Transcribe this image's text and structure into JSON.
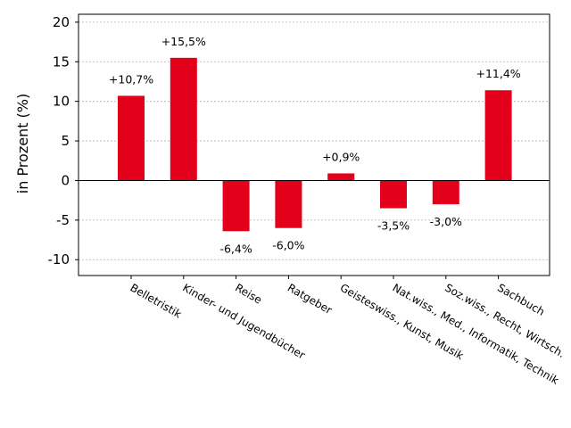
{
  "chart_data": {
    "type": "bar",
    "title": "",
    "xlabel": "",
    "ylabel": "in Prozent (%)",
    "ylim": [
      -12,
      21
    ],
    "yticks": [
      20,
      15,
      10,
      5,
      0,
      -5,
      -10
    ],
    "ytick_labels": [
      "20",
      "15",
      "10",
      "5",
      "0",
      "-5",
      "-10"
    ],
    "grid": true,
    "bar_color": "#e2001a",
    "categories": [
      "Belletristik",
      "Kinder- und Jugendbücher",
      "Reise",
      "Ratgeber",
      "Geisteswiss., Kunst, Musik",
      "Nat.wiss., Med., Informatik, Technik",
      "Soz.wiss., Recht, Wirtsch.",
      "Sachbuch"
    ],
    "values": [
      10.7,
      15.5,
      -6.4,
      -6.0,
      0.9,
      -3.5,
      -3.0,
      11.4
    ],
    "data_labels": [
      "+10,7%",
      "+15,5%",
      "-6,4%",
      "-6,0%",
      "+0,9%",
      "-3,5%",
      "-3,0%",
      "+11,4%"
    ]
  }
}
